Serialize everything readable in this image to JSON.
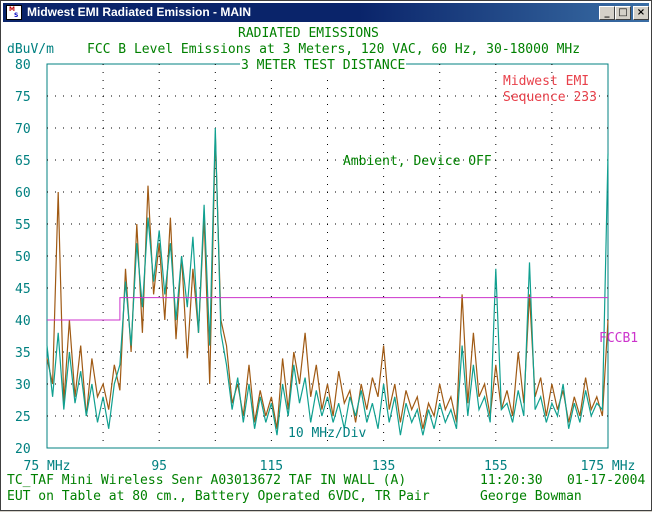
{
  "window": {
    "title": "Midwest EMI Radiated Emission - MAIN",
    "icon_letters": [
      "M",
      "S"
    ],
    "buttons": {
      "minimize": "_",
      "maximize": "□",
      "close": "×"
    }
  },
  "header": {
    "line1": "RADIATED EMISSIONS",
    "line2": "FCC B Level Emissions at 3 Meters, 120 VAC, 60 Hz, 30-18000 MHz",
    "line3": "3 METER TEST DISTANCE",
    "unit": "dBuV/m"
  },
  "annotations": {
    "company": "Midwest EMI",
    "sequence": "Sequence 233",
    "ambient": "Ambient, Device OFF",
    "limit_label": "FCCB1",
    "x_div": "10 MHz/Div"
  },
  "footer": {
    "line1_left": "TC_TAF Mini Wireless Senr  A03013672 TAF IN WALL (A)",
    "time": "11:20:30",
    "date": "01-17-2004",
    "line2_left": "EUT on Table at 80 cm., Battery Operated 6VDC, TR Pair",
    "operator": "George Bowman"
  },
  "colors": {
    "axis": "#008080",
    "text": "#008000",
    "limit": "#cc33cc",
    "trace_device": "#a05a14",
    "trace_ambient": "#10a090",
    "company": "#e8404a"
  },
  "chart_data": {
    "type": "line",
    "ylabel": "dBuV/m",
    "xlabel": "",
    "title": "RADIATED EMISSIONS",
    "xlim": [
      75,
      175
    ],
    "ylim": [
      20,
      80
    ],
    "x_tick_labels": [
      "75 MHz",
      "95",
      "115",
      "135",
      "155",
      "175 MHz"
    ],
    "x_ticks": [
      75,
      95,
      115,
      135,
      155,
      175
    ],
    "y_ticks": [
      20,
      25,
      30,
      35,
      40,
      45,
      50,
      55,
      60,
      65,
      70,
      75,
      80
    ],
    "grid": true,
    "series": [
      {
        "name": "FCCB1",
        "x": [
          75,
          88,
          88,
          175
        ],
        "values": [
          40,
          40,
          43.5,
          43.5
        ]
      },
      {
        "name": "",
        "x": [
          75,
          76,
          77,
          78,
          79,
          80,
          81,
          82,
          83,
          84,
          85,
          86,
          87,
          88,
          89,
          90,
          91,
          92,
          93,
          94,
          95,
          96,
          97,
          98,
          99,
          100,
          101,
          102,
          103,
          104,
          105,
          106,
          107,
          108,
          109,
          110,
          111,
          112,
          113,
          114,
          115,
          116,
          117,
          118,
          119,
          120,
          121,
          122,
          123,
          124,
          125,
          126,
          127,
          128,
          129,
          130,
          131,
          132,
          133,
          134,
          135,
          136,
          137,
          138,
          139,
          140,
          141,
          142,
          143,
          144,
          145,
          146,
          147,
          148,
          149,
          150,
          151,
          152,
          153,
          154,
          155,
          156,
          157,
          158,
          159,
          160,
          161,
          162,
          163,
          164,
          165,
          166,
          167,
          168,
          169,
          170,
          171,
          172,
          173,
          174,
          175
        ],
        "values": [
          34,
          30,
          60,
          27,
          40,
          28,
          36,
          25,
          34,
          28,
          30,
          26,
          33,
          29,
          48,
          35,
          55,
          38,
          61,
          44,
          52,
          40,
          56,
          37,
          50,
          34,
          48,
          38,
          56,
          30,
          69,
          40,
          36,
          27,
          30,
          25,
          33,
          24,
          29,
          25,
          28,
          23,
          34,
          26,
          35,
          30,
          38,
          28,
          33,
          26,
          30,
          25,
          32,
          27,
          29,
          24,
          30,
          26,
          31,
          28,
          36,
          26,
          30,
          24,
          29,
          26,
          28,
          23,
          27,
          25,
          30,
          26,
          28,
          24,
          44,
          27,
          38,
          28,
          30,
          25,
          33,
          26,
          29,
          25,
          35,
          27,
          44,
          28,
          31,
          25,
          30,
          26,
          29,
          24,
          28,
          25,
          31,
          26,
          28,
          25,
          40
        ]
      },
      {
        "name": "Ambient, Device OFF",
        "x": [
          75,
          76,
          77,
          78,
          79,
          80,
          81,
          82,
          83,
          84,
          85,
          86,
          87,
          88,
          89,
          90,
          91,
          92,
          93,
          94,
          95,
          96,
          97,
          98,
          99,
          100,
          101,
          102,
          103,
          104,
          105,
          106,
          107,
          108,
          109,
          110,
          111,
          112,
          113,
          114,
          115,
          116,
          117,
          118,
          119,
          120,
          121,
          122,
          123,
          124,
          125,
          126,
          127,
          128,
          129,
          130,
          131,
          132,
          133,
          134,
          135,
          136,
          137,
          138,
          139,
          140,
          141,
          142,
          143,
          144,
          145,
          146,
          147,
          148,
          149,
          150,
          151,
          152,
          153,
          154,
          155,
          156,
          157,
          158,
          159,
          160,
          161,
          162,
          163,
          164,
          165,
          166,
          167,
          168,
          169,
          170,
          171,
          172,
          173,
          174,
          175
        ],
        "values": [
          36,
          28,
          38,
          26,
          35,
          27,
          32,
          25,
          30,
          24,
          28,
          23,
          30,
          33,
          46,
          36,
          52,
          42,
          56,
          46,
          54,
          44,
          52,
          40,
          50,
          42,
          53,
          38,
          58,
          36,
          70,
          38,
          33,
          26,
          31,
          24,
          30,
          23,
          28,
          24,
          27,
          22,
          30,
          25,
          33,
          27,
          31,
          24,
          29,
          25,
          28,
          24,
          27,
          23,
          28,
          25,
          29,
          24,
          27,
          23,
          30,
          24,
          28,
          22,
          27,
          24,
          26,
          22,
          26,
          23,
          27,
          24,
          26,
          23,
          36,
          25,
          33,
          26,
          28,
          24,
          48,
          26,
          27,
          24,
          29,
          25,
          49,
          26,
          28,
          24,
          27,
          25,
          30,
          23,
          27,
          24,
          29,
          25,
          27,
          26,
          66
        ]
      }
    ]
  }
}
